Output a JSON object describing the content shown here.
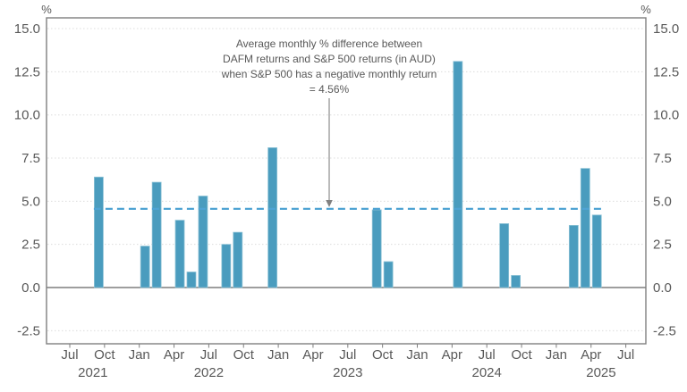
{
  "chart_data": {
    "type": "bar",
    "title": "",
    "unit": "%",
    "y_axis": {
      "ticks": [
        15.0,
        12.5,
        10.0,
        7.5,
        5.0,
        2.5,
        0.0,
        -2.5
      ],
      "min": -3.3,
      "max": 15.6,
      "unit_label": "%"
    },
    "x_axis": {
      "tick_labels": [
        "Jul",
        "Oct",
        "Jan",
        "Apr",
        "Jul",
        "Oct",
        "Jan",
        "Apr",
        "Jul",
        "Oct",
        "Jan",
        "Apr",
        "Jul",
        "Oct",
        "Jan",
        "Apr",
        "Jul"
      ],
      "year_labels": [
        "2021",
        "2022",
        "2023",
        "2024",
        "2025"
      ],
      "range": [
        "Jul 2021",
        "Jul 2025"
      ]
    },
    "bars": [
      {
        "label": "Sep 2021",
        "month_index": 2,
        "value": 6.4
      },
      {
        "label": "Jan 2022",
        "month_index": 6,
        "value": 2.4
      },
      {
        "label": "Feb 2022",
        "month_index": 7,
        "value": 6.1
      },
      {
        "label": "Apr 2022",
        "month_index": 9,
        "value": 3.9
      },
      {
        "label": "May 2022",
        "month_index": 10,
        "value": 0.9
      },
      {
        "label": "Jun 2022",
        "month_index": 11,
        "value": 5.3
      },
      {
        "label": "Aug 2022",
        "month_index": 13,
        "value": 2.5
      },
      {
        "label": "Sep 2022",
        "month_index": 14,
        "value": 3.2
      },
      {
        "label": "Dec 2022",
        "month_index": 17,
        "value": 8.1
      },
      {
        "label": "Sep 2023",
        "month_index": 26,
        "value": 4.5
      },
      {
        "label": "Oct 2023",
        "month_index": 27,
        "value": 1.5
      },
      {
        "label": "Apr 2024",
        "month_index": 33,
        "value": 13.1
      },
      {
        "label": "Aug 2024",
        "month_index": 37,
        "value": 3.7
      },
      {
        "label": "Sep 2024",
        "month_index": 38,
        "value": 0.7
      },
      {
        "label": "Feb 2025",
        "month_index": 43,
        "value": 3.6
      },
      {
        "label": "Mar 2025",
        "month_index": 44,
        "value": 6.9
      },
      {
        "label": "Apr 2025",
        "month_index": 45,
        "value": 4.2
      }
    ],
    "reference_line": {
      "value": 4.56,
      "style": "dashed"
    },
    "annotation": {
      "lines": [
        "Average monthly % difference between",
        "DAFM returns and S&P 500 returns (in AUD)",
        "when S&P 500 has a negative monthly return",
        "= 4.56%"
      ]
    },
    "grid": true,
    "legend": null
  },
  "colors": {
    "bar": "#4A9CBE",
    "bar_edge": "#8CC2D6",
    "reference_line": "#4FA3D3",
    "axis": "#7F7F7F",
    "gridline": "#DCDCDC",
    "text": "#595959",
    "arrow": "#808080",
    "background": "#FFFFFF"
  }
}
